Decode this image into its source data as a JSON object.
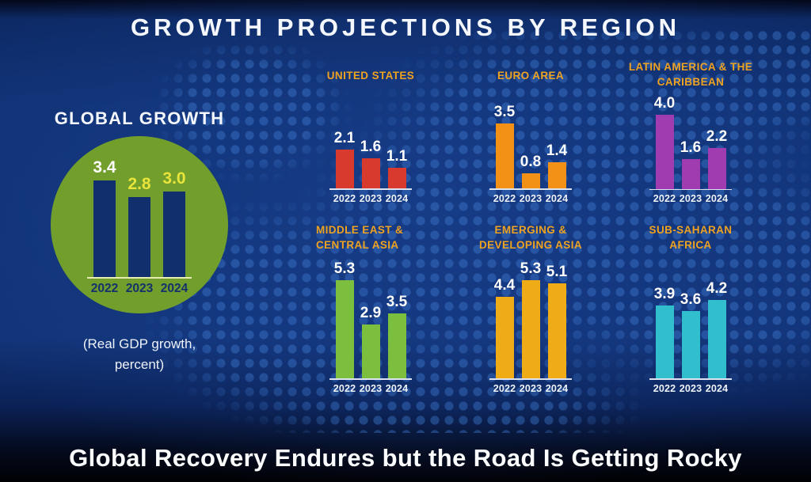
{
  "title": "GROWTH PROJECTIONS BY REGION",
  "footer": {
    "caption": "Global Recovery Endures but the Road Is Getting Rocky"
  },
  "colors": {
    "background_navy": "#12347a",
    "map_dot_blue": "#1e4a94",
    "header_gold": "#efa321",
    "text_white": "#f4f7fd",
    "global_circle_green": "#729f2c",
    "global_bar_navy": "#112f6d",
    "yellow_value_label": "#e9e43c",
    "us_red": "#d93a2e",
    "euro_orange": "#f39117",
    "latam_purple": "#a13cb0",
    "mideast_green": "#7cbe3e",
    "asia_gold": "#f0ac17",
    "africa_teal": "#31bfcd"
  },
  "chart_data": [
    {
      "id": "global",
      "type": "bar",
      "title": "GLOBAL GROWTH",
      "title_lines": [
        "GLOBAL GROWTH"
      ],
      "note": "(Real GDP growth, percent)",
      "categories": [
        "2022",
        "2023",
        "2024"
      ],
      "values": [
        3.4,
        2.8,
        3.0
      ],
      "value_labels": [
        "3.4",
        "2.8",
        "3.0"
      ],
      "bar_color": "#112f6d",
      "value_colors": [
        "#ffffff",
        "#e9e43c",
        "#e9e43c"
      ],
      "ylim": [
        0,
        4
      ]
    },
    {
      "id": "united-states",
      "type": "bar",
      "title": "UNITED STATES",
      "title_lines": [
        "UNITED STATES"
      ],
      "categories": [
        "2022",
        "2023",
        "2024"
      ],
      "values": [
        2.1,
        1.6,
        1.1
      ],
      "value_labels": [
        "2.1",
        "1.6",
        "1.1"
      ],
      "bar_color": "#d93a2e",
      "value_colors": [
        "#ffffff",
        "#ffffff",
        "#ffffff"
      ],
      "ylim": [
        0,
        4.5
      ]
    },
    {
      "id": "euro-area",
      "type": "bar",
      "title": "EURO AREA",
      "title_lines": [
        "EURO AREA"
      ],
      "categories": [
        "2022",
        "2023",
        "2024"
      ],
      "values": [
        3.5,
        0.8,
        1.4
      ],
      "value_labels": [
        "3.5",
        "0.8",
        "1.4"
      ],
      "bar_color": "#f39117",
      "value_colors": [
        "#ffffff",
        "#ffffff",
        "#ffffff"
      ],
      "ylim": [
        0,
        4.5
      ]
    },
    {
      "id": "latin-america-caribbean",
      "type": "bar",
      "title": "LATIN AMERICA & THE CARIBBEAN",
      "title_lines": [
        "LATIN AMERICA & THE",
        "CARIBBEAN"
      ],
      "categories": [
        "2022",
        "2023",
        "2024"
      ],
      "values": [
        4.0,
        1.6,
        2.2
      ],
      "value_labels": [
        "4.0",
        "1.6",
        "2.2"
      ],
      "bar_color": "#a13cb0",
      "value_colors": [
        "#ffffff",
        "#ffffff",
        "#ffffff"
      ],
      "ylim": [
        0,
        4.5
      ]
    },
    {
      "id": "middle-east-central-asia",
      "type": "bar",
      "title": "MIDDLE EAST & CENTRAL ASIA",
      "title_lines": [
        "MIDDLE EAST &",
        "CENTRAL ASIA"
      ],
      "categories": [
        "2022",
        "2023",
        "2024"
      ],
      "values": [
        5.3,
        2.9,
        3.5
      ],
      "value_labels": [
        "5.3",
        "2.9",
        "3.5"
      ],
      "bar_color": "#7cbe3e",
      "value_colors": [
        "#ffffff",
        "#ffffff",
        "#ffffff"
      ],
      "ylim": [
        0,
        5.6
      ]
    },
    {
      "id": "emerging-developing-asia",
      "type": "bar",
      "title": "EMERGING & DEVELOPING ASIA",
      "title_lines": [
        "EMERGING &",
        "DEVELOPING ASIA"
      ],
      "categories": [
        "2022",
        "2023",
        "2024"
      ],
      "values": [
        4.4,
        5.3,
        5.1
      ],
      "value_labels": [
        "4.4",
        "5.3",
        "5.1"
      ],
      "bar_color": "#f0ac17",
      "value_colors": [
        "#ffffff",
        "#ffffff",
        "#ffffff"
      ],
      "ylim": [
        0,
        5.6
      ]
    },
    {
      "id": "sub-saharan-africa",
      "type": "bar",
      "title": "SUB-SAHARAN AFRICA",
      "title_lines": [
        "SUB-SAHARAN",
        "AFRICA"
      ],
      "categories": [
        "2022",
        "2023",
        "2024"
      ],
      "values": [
        3.9,
        3.6,
        4.2
      ],
      "value_labels": [
        "3.9",
        "3.6",
        "4.2"
      ],
      "bar_color": "#31bfcd",
      "value_colors": [
        "#ffffff",
        "#ffffff",
        "#ffffff"
      ],
      "ylim": [
        0,
        5.6
      ]
    }
  ]
}
